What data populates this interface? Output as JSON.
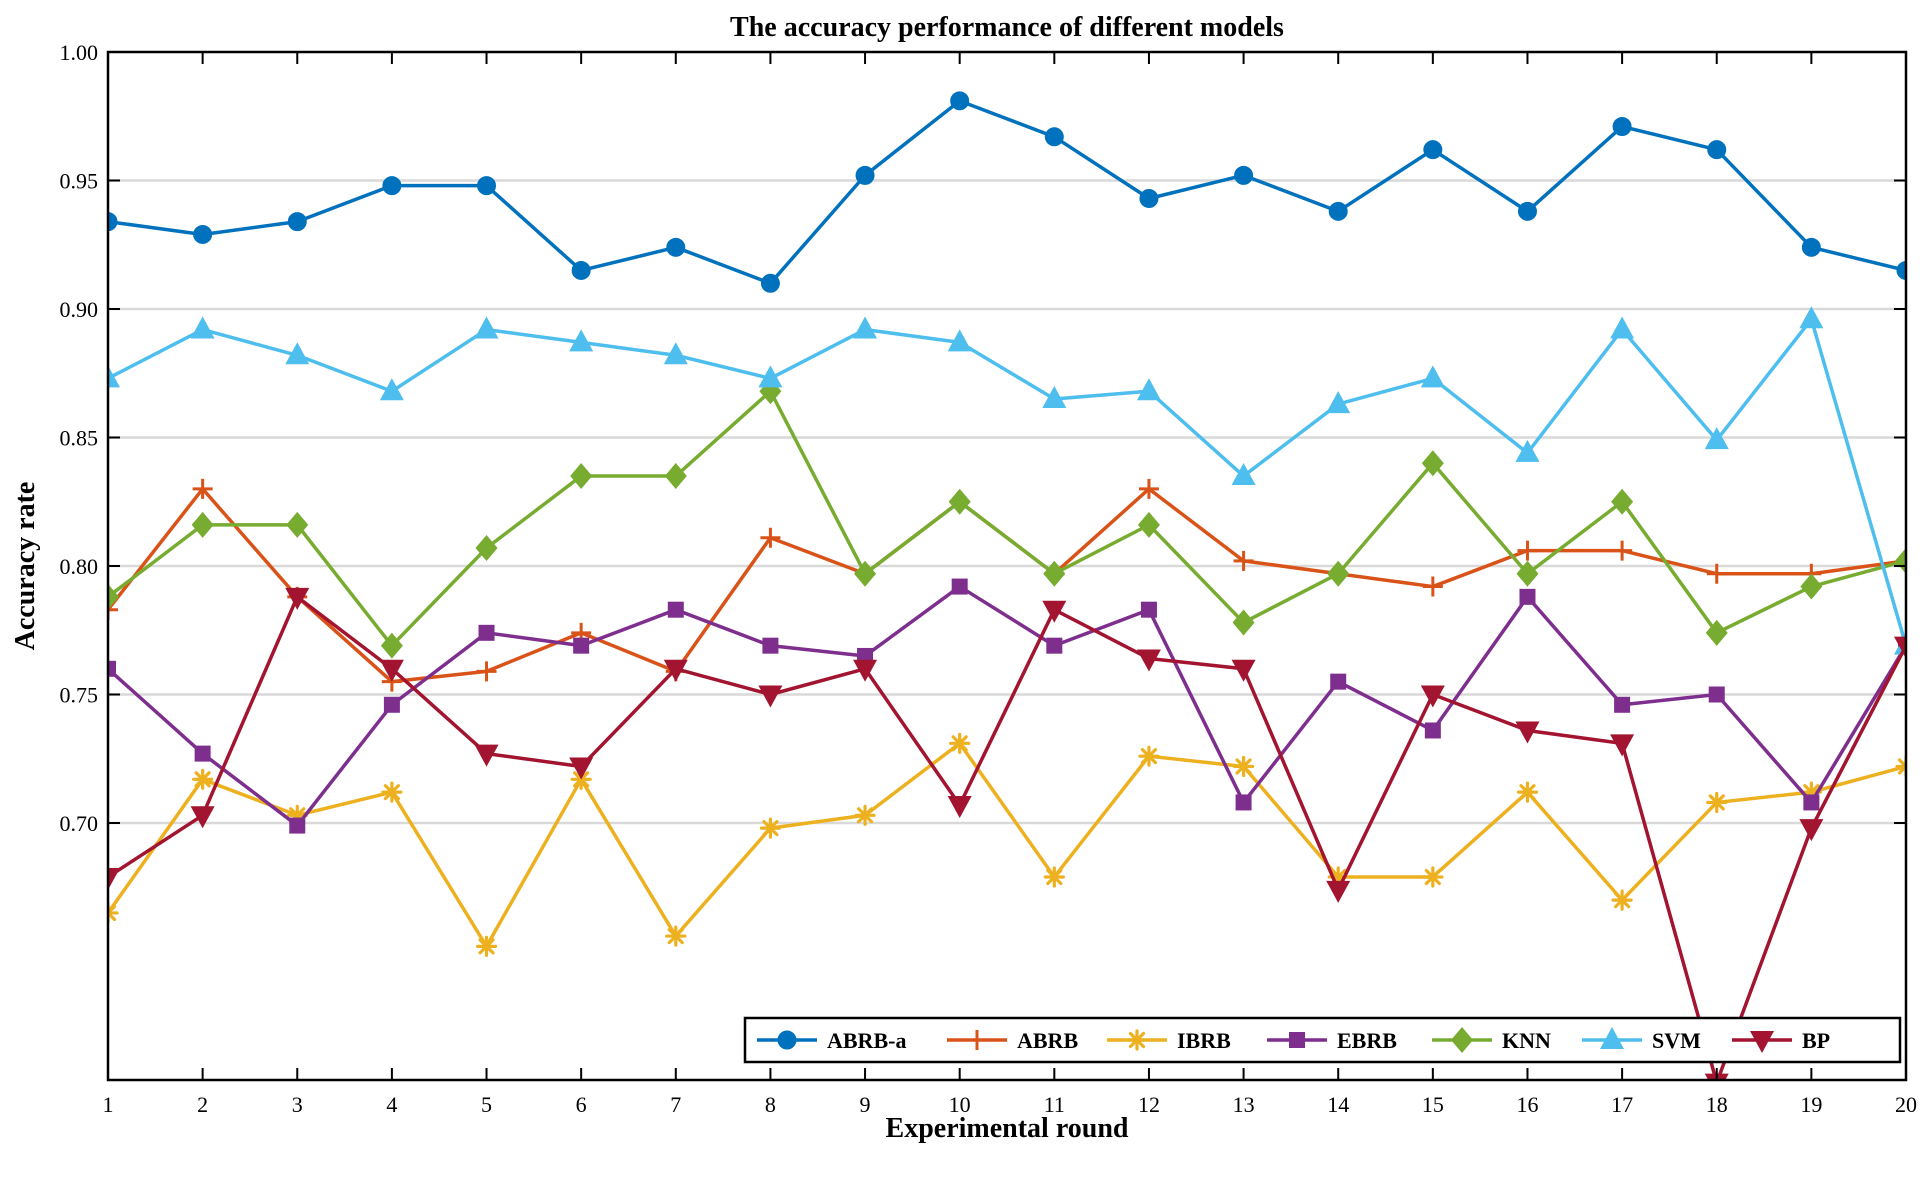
{
  "chart_data": {
    "type": "line",
    "title": "The accuracy performance of different models",
    "xlabel": "Experimental round",
    "ylabel": "Accuracy rate",
    "xlim": [
      1,
      20
    ],
    "ylim": [
      0.6,
      1.0
    ],
    "yticks": [
      0.7,
      0.75,
      0.8,
      0.85,
      0.9,
      0.95,
      1.0
    ],
    "ytick_labels": [
      "0.70",
      "0.75",
      "0.80",
      "0.85",
      "0.90",
      "0.95",
      "1.00"
    ],
    "x": [
      1,
      2,
      3,
      4,
      5,
      6,
      7,
      8,
      9,
      10,
      11,
      12,
      13,
      14,
      15,
      16,
      17,
      18,
      19,
      20
    ],
    "xtick_labels": [
      "1",
      "2",
      "3",
      "4",
      "5",
      "6",
      "7",
      "8",
      "9",
      "10",
      "11",
      "12",
      "13",
      "14",
      "15",
      "16",
      "17",
      "18",
      "19",
      "20"
    ],
    "grid": "horizontal",
    "legend_position": "bottom-right",
    "series": [
      {
        "name": "ABRB-a",
        "color": "#0072BD",
        "marker": "circle",
        "values": [
          0.934,
          0.929,
          0.934,
          0.948,
          0.948,
          0.915,
          0.924,
          0.91,
          0.952,
          0.981,
          0.967,
          0.943,
          0.952,
          0.938,
          0.962,
          0.938,
          0.971,
          0.962,
          0.924,
          0.915
        ]
      },
      {
        "name": "ABRB",
        "color": "#D95319",
        "marker": "plus",
        "values": [
          0.783,
          0.83,
          0.788,
          0.755,
          0.759,
          0.774,
          0.759,
          0.811,
          0.797,
          0.825,
          0.797,
          0.83,
          0.802,
          0.797,
          0.792,
          0.806,
          0.806,
          0.797,
          0.797,
          0.802
        ]
      },
      {
        "name": "IBRB",
        "color": "#EDB120",
        "marker": "asterisk",
        "values": [
          0.665,
          0.717,
          0.703,
          0.712,
          0.652,
          0.717,
          0.656,
          0.698,
          0.703,
          0.731,
          0.679,
          0.726,
          0.722,
          0.679,
          0.679,
          0.712,
          0.67,
          0.708,
          0.712,
          0.722
        ]
      },
      {
        "name": "EBRB",
        "color": "#7E2F8E",
        "marker": "square",
        "values": [
          0.76,
          0.727,
          0.699,
          0.746,
          0.774,
          0.769,
          0.783,
          0.769,
          0.765,
          0.792,
          0.769,
          0.783,
          0.708,
          0.755,
          0.736,
          0.788,
          0.746,
          0.75,
          0.708,
          0.769
        ]
      },
      {
        "name": "KNN",
        "color": "#77AC30",
        "marker": "diamond",
        "values": [
          0.788,
          0.816,
          0.816,
          0.769,
          0.807,
          0.835,
          0.835,
          0.868,
          0.797,
          0.825,
          0.797,
          0.816,
          0.778,
          0.797,
          0.84,
          0.797,
          0.825,
          0.774,
          0.792,
          0.802
        ]
      },
      {
        "name": "SVM",
        "color": "#4DBEEE",
        "marker": "triangle-up",
        "values": [
          0.873,
          0.892,
          0.882,
          0.868,
          0.892,
          0.887,
          0.882,
          0.873,
          0.892,
          0.887,
          0.865,
          0.868,
          0.835,
          0.863,
          0.873,
          0.844,
          0.892,
          0.849,
          0.896,
          0.769
        ]
      },
      {
        "name": "BP",
        "color": "#A2142F",
        "marker": "triangle-down",
        "values": [
          0.679,
          0.703,
          0.788,
          0.76,
          0.727,
          0.722,
          0.76,
          0.75,
          0.76,
          0.707,
          0.783,
          0.764,
          0.76,
          0.674,
          0.75,
          0.736,
          0.731,
          0.599,
          0.698,
          0.769
        ]
      }
    ]
  }
}
